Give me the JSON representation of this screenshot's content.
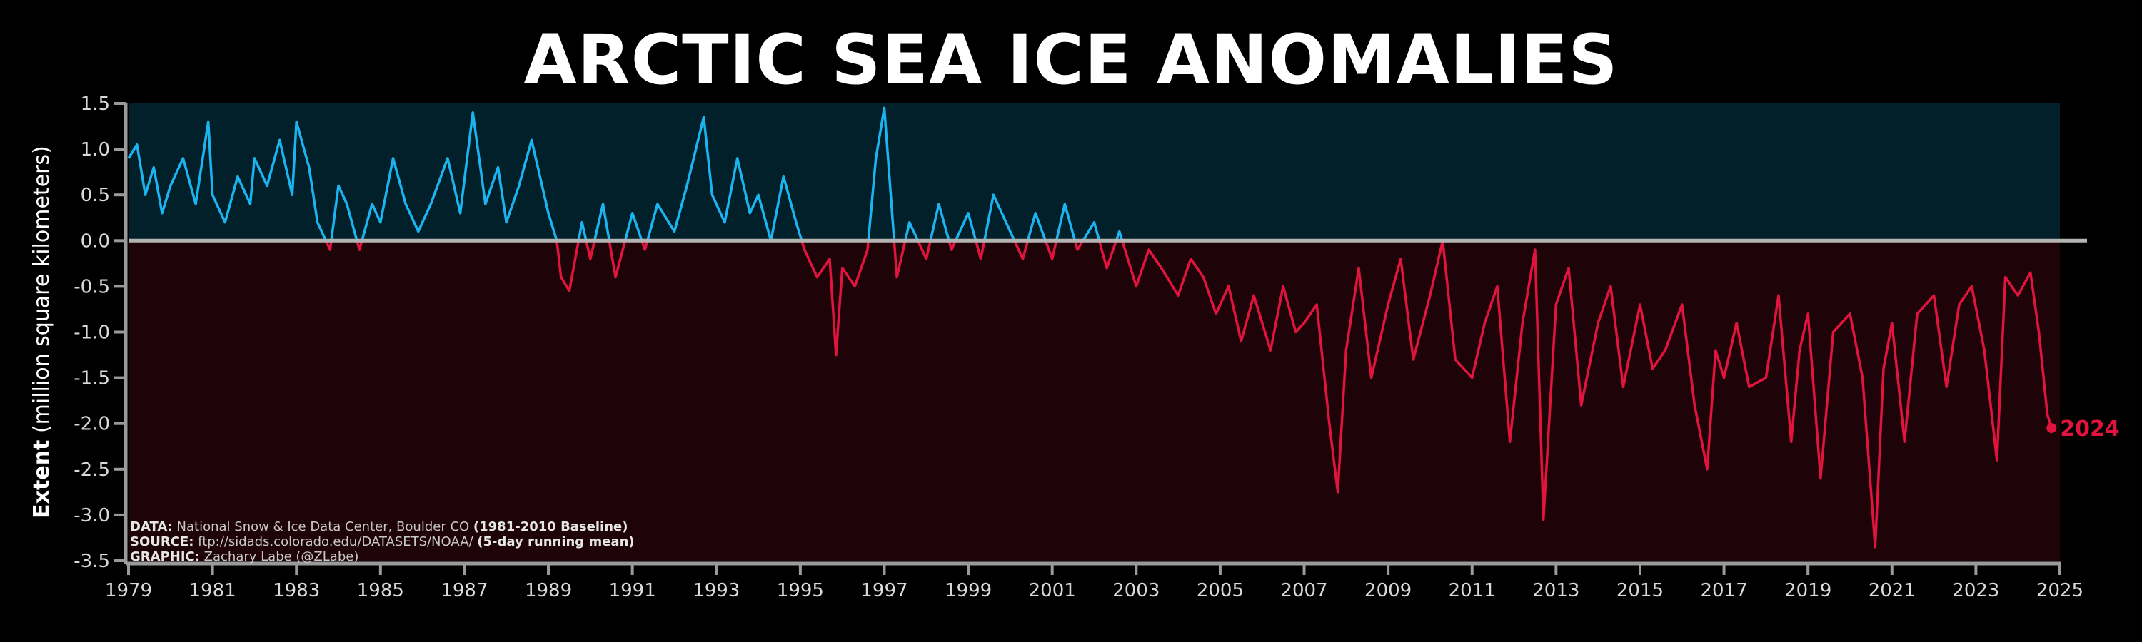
{
  "chart_data": {
    "type": "line",
    "title": "ARCTIC SEA ICE ANOMALIES",
    "ylabel_bold": "Extent",
    "ylabel_rest": " (million square kilometers)",
    "xlim": [
      1979,
      2025
    ],
    "ylim": [
      -3.5,
      1.5
    ],
    "y_ticks": [
      1.5,
      1.0,
      0.5,
      0.0,
      -0.5,
      -1.0,
      -1.5,
      -2.0,
      -2.5,
      -3.0,
      -3.5
    ],
    "y_tick_labels": [
      "1.5",
      "1.0",
      "0.5",
      "0.0",
      "-0.5",
      "-1.0",
      "-1.5",
      "-2.0",
      "-2.5",
      "-3.0",
      "-3.5"
    ],
    "x_ticks": [
      1979,
      1981,
      1983,
      1985,
      1987,
      1989,
      1991,
      1993,
      1995,
      1997,
      1999,
      2001,
      2003,
      2005,
      2007,
      2009,
      2011,
      2013,
      2015,
      2017,
      2019,
      2021,
      2023,
      2025
    ],
    "x_tick_labels": [
      "1979",
      "1981",
      "1983",
      "1985",
      "1987",
      "1989",
      "1991",
      "1993",
      "1995",
      "1997",
      "1999",
      "2001",
      "2003",
      "2005",
      "2007",
      "2009",
      "2011",
      "2013",
      "2015",
      "2017",
      "2019",
      "2021",
      "2023",
      "2025"
    ],
    "baseline": 0,
    "end_label": "2024",
    "colors": {
      "positive": "#1bb3f0",
      "negative": "#e0143c",
      "positive_bg": "#012029",
      "negative_bg": "#1e0409",
      "zero_line": "#b3b3b3",
      "axis": "#9a9a9a"
    },
    "series": [
      {
        "x": [
          1979.0,
          1979.2,
          1979.4,
          1979.6,
          1979.8,
          1980.0,
          1980.3,
          1980.6,
          1980.9,
          1981.0,
          1981.3,
          1981.6,
          1981.9,
          1982.0,
          1982.3,
          1982.6,
          1982.9,
          1983.0,
          1983.3,
          1983.5,
          1983.8,
          1984.0,
          1984.2,
          1984.5,
          1984.8,
          1985.0,
          1985.3,
          1985.6,
          1985.9,
          1986.2,
          1986.6,
          1986.9,
          1987.2,
          1987.5,
          1987.8,
          1988.0,
          1988.3,
          1988.6,
          1989.0,
          1989.2,
          1989.3,
          1989.5,
          1989.8,
          1990.0,
          1990.3,
          1990.6,
          1991.0,
          1991.3,
          1991.6,
          1992.0,
          1992.3,
          1992.7,
          1992.9,
          1993.2,
          1993.5,
          1993.8,
          1994.0,
          1994.3,
          1994.6,
          1994.9,
          1995.1,
          1995.4,
          1995.7,
          1995.85,
          1996.0,
          1996.3,
          1996.6,
          1996.8,
          1997.0,
          1997.3,
          1997.6,
          1998.0,
          1998.3,
          1998.6,
          1999.0,
          1999.3,
          1999.6,
          2000.0,
          2000.3,
          2000.6,
          2001.0,
          2001.3,
          2001.6,
          2002.0,
          2002.3,
          2002.6,
          2003.0,
          2003.3,
          2003.6,
          2004.0,
          2004.3,
          2004.6,
          2004.9,
          2005.2,
          2005.5,
          2005.8,
          2006.2,
          2006.5,
          2006.8,
          2007.0,
          2007.3,
          2007.6,
          2007.8,
          2008.0,
          2008.3,
          2008.6,
          2009.0,
          2009.3,
          2009.6,
          2010.0,
          2010.3,
          2010.6,
          2011.0,
          2011.3,
          2011.6,
          2011.9,
          2012.2,
          2012.5,
          2012.7,
          2013.0,
          2013.3,
          2013.6,
          2014.0,
          2014.3,
          2014.6,
          2015.0,
          2015.3,
          2015.6,
          2016.0,
          2016.3,
          2016.6,
          2016.8,
          2017.0,
          2017.3,
          2017.6,
          2018.0,
          2018.3,
          2018.6,
          2018.8,
          2019.0,
          2019.3,
          2019.6,
          2020.0,
          2020.3,
          2020.6,
          2020.8,
          2021.0,
          2021.3,
          2021.6,
          2022.0,
          2022.3,
          2022.6,
          2022.9,
          2023.2,
          2023.5,
          2023.7,
          2024.0,
          2024.3,
          2024.5,
          2024.7,
          2024.8
        ],
        "values": [
          0.9,
          1.05,
          0.5,
          0.8,
          0.3,
          0.6,
          0.9,
          0.4,
          1.3,
          0.5,
          0.2,
          0.7,
          0.4,
          0.9,
          0.6,
          1.1,
          0.5,
          1.3,
          0.8,
          0.2,
          -0.1,
          0.6,
          0.4,
          -0.1,
          0.4,
          0.2,
          0.9,
          0.4,
          0.1,
          0.4,
          0.9,
          0.3,
          1.4,
          0.4,
          0.8,
          0.2,
          0.6,
          1.1,
          0.3,
          0.0,
          -0.4,
          -0.55,
          0.2,
          -0.2,
          0.4,
          -0.4,
          0.3,
          -0.1,
          0.4,
          0.1,
          0.6,
          1.35,
          0.5,
          0.2,
          0.9,
          0.3,
          0.5,
          0.0,
          0.7,
          0.2,
          -0.1,
          -0.4,
          -0.2,
          -1.25,
          -0.3,
          -0.5,
          -0.1,
          0.9,
          1.45,
          -0.4,
          0.2,
          -0.2,
          0.4,
          -0.1,
          0.3,
          -0.2,
          0.5,
          0.1,
          -0.2,
          0.3,
          -0.2,
          0.4,
          -0.1,
          0.2,
          -0.3,
          0.1,
          -0.5,
          -0.1,
          -0.3,
          -0.6,
          -0.2,
          -0.4,
          -0.8,
          -0.5,
          -1.1,
          -0.6,
          -1.2,
          -0.5,
          -1.0,
          -0.9,
          -0.7,
          -2.0,
          -2.75,
          -1.2,
          -0.3,
          -1.5,
          -0.7,
          -0.2,
          -1.3,
          -0.6,
          0.0,
          -1.3,
          -1.5,
          -0.9,
          -0.5,
          -2.2,
          -0.9,
          -0.1,
          -3.05,
          -0.7,
          -0.3,
          -1.8,
          -0.9,
          -0.5,
          -1.6,
          -0.7,
          -1.4,
          -1.2,
          -0.7,
          -1.8,
          -2.5,
          -1.2,
          -1.5,
          -0.9,
          -1.6,
          -1.5,
          -0.6,
          -2.2,
          -1.2,
          -0.8,
          -2.6,
          -1.0,
          -0.8,
          -1.5,
          -3.35,
          -1.4,
          -0.9,
          -2.2,
          -0.8,
          -0.6,
          -1.6,
          -0.7,
          -0.5,
          -1.2,
          -2.4,
          -0.4,
          -0.6,
          -0.35,
          -1.0,
          -1.9,
          -2.05
        ]
      }
    ],
    "notes": [
      {
        "bold": "DATA:",
        "text": " National Snow & Ice Data Center, Boulder CO ",
        "bold2": "(1981-2010 Baseline)"
      },
      {
        "bold": "SOURCE:",
        "text": " ftp://sidads.colorado.edu/DATASETS/NOAA/ ",
        "bold2": "(5-day running mean)"
      },
      {
        "bold": "GRAPHIC:",
        "text": " Zachary Labe (@ZLabe)",
        "bold2": ""
      }
    ]
  }
}
